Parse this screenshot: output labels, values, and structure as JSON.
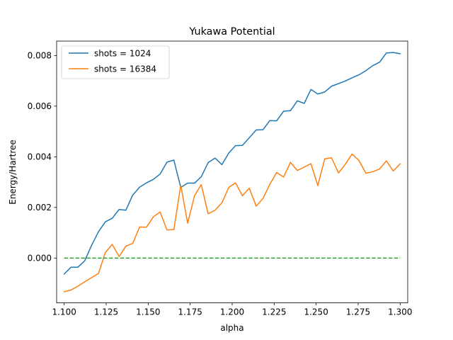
{
  "chart_data": {
    "type": "line",
    "title": "Yukawa Potential",
    "xlabel": "alpha",
    "ylabel": "Energy/Hartree",
    "xlim": [
      1.0955,
      1.3045
    ],
    "ylim": [
      -0.00177,
      0.00857
    ],
    "xticks": [
      1.1,
      1.125,
      1.15,
      1.175,
      1.2,
      1.225,
      1.25,
      1.275,
      1.3
    ],
    "xtick_labels": [
      "1.100",
      "1.125",
      "1.150",
      "1.175",
      "1.200",
      "1.225",
      "1.250",
      "1.275",
      "1.300"
    ],
    "yticks": [
      0.0,
      0.002,
      0.004,
      0.006,
      0.008
    ],
    "ytick_labels": [
      "0.000",
      "0.002",
      "0.004",
      "0.006",
      "0.008"
    ],
    "grid": false,
    "legend_position": "top-left",
    "x": [
      1.1,
      1.1041,
      1.1082,
      1.1122,
      1.1163,
      1.1204,
      1.1245,
      1.1286,
      1.1327,
      1.1367,
      1.1408,
      1.1449,
      1.149,
      1.1531,
      1.1571,
      1.1612,
      1.1653,
      1.1694,
      1.1735,
      1.1776,
      1.1816,
      1.1857,
      1.1898,
      1.1939,
      1.198,
      1.202,
      1.2061,
      1.2102,
      1.2143,
      1.2184,
      1.2224,
      1.2265,
      1.2306,
      1.2347,
      1.2388,
      1.2429,
      1.2469,
      1.251,
      1.2551,
      1.2592,
      1.2633,
      1.2673,
      1.2714,
      1.2755,
      1.2796,
      1.2837,
      1.2878,
      1.2918,
      1.2959,
      1.3
    ],
    "series": [
      {
        "name": "shots = 1024",
        "color": "#1f77b4",
        "style": "solid",
        "values": [
          -0.00063,
          -0.00036,
          -0.00036,
          -0.00011,
          0.0005,
          0.00104,
          0.00143,
          0.00157,
          0.00192,
          0.00189,
          0.00249,
          0.0028,
          0.00297,
          0.00311,
          0.00332,
          0.00379,
          0.00387,
          0.00279,
          0.00296,
          0.00296,
          0.00321,
          0.00377,
          0.00395,
          0.00369,
          0.00415,
          0.00444,
          0.00445,
          0.00475,
          0.00506,
          0.00507,
          0.00543,
          0.00542,
          0.0058,
          0.00582,
          0.00621,
          0.00611,
          0.00666,
          0.00648,
          0.00656,
          0.00679,
          0.00689,
          0.00699,
          0.00712,
          0.00724,
          0.0074,
          0.0076,
          0.00774,
          0.0081,
          0.00812,
          0.00807
        ]
      },
      {
        "name": "shots = 16384",
        "color": "#ff7f0e",
        "style": "solid",
        "values": [
          -0.00133,
          -0.00126,
          -0.00111,
          -0.00094,
          -0.00077,
          -0.00061,
          0.00022,
          0.00054,
          6e-05,
          0.00047,
          0.00058,
          0.00123,
          0.00122,
          0.00163,
          0.00182,
          0.00111,
          0.00113,
          0.00288,
          0.00138,
          0.00246,
          0.0029,
          0.00175,
          0.00189,
          0.00218,
          0.00279,
          0.00297,
          0.00246,
          0.00276,
          0.00205,
          0.00236,
          0.00291,
          0.00338,
          0.0032,
          0.00378,
          0.00346,
          0.00359,
          0.00373,
          0.00286,
          0.00392,
          0.00396,
          0.00336,
          0.0037,
          0.00411,
          0.00385,
          0.00335,
          0.00341,
          0.00352,
          0.00384,
          0.00344,
          0.00372
        ]
      },
      {
        "color": "#2ca02c",
        "style": "dashed",
        "values": [
          0,
          0,
          0,
          0,
          0,
          0,
          0,
          0,
          0,
          0,
          0,
          0,
          0,
          0,
          0,
          0,
          0,
          0,
          0,
          0,
          0,
          0,
          0,
          0,
          0,
          0,
          0,
          0,
          0,
          0,
          0,
          0,
          0,
          0,
          0,
          0,
          0,
          0,
          0,
          0,
          0,
          0,
          0,
          0,
          0,
          0,
          0,
          0,
          0,
          0
        ]
      }
    ]
  }
}
